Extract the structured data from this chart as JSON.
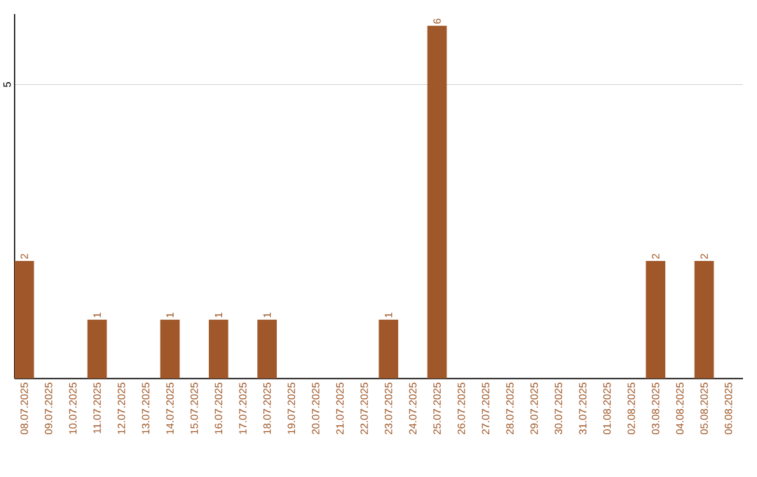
{
  "chart_data": {
    "type": "bar",
    "categories": [
      "08.07.2025",
      "09.07.2025",
      "10.07.2025",
      "11.07.2025",
      "12.07.2025",
      "13.07.2025",
      "14.07.2025",
      "15.07.2025",
      "16.07.2025",
      "17.07.2025",
      "18.07.2025",
      "19.07.2025",
      "20.07.2025",
      "21.07.2025",
      "22.07.2025",
      "23.07.2025",
      "24.07.2025",
      "25.07.2025",
      "26.07.2025",
      "27.07.2025",
      "28.07.2025",
      "29.07.2025",
      "30.07.2025",
      "31.07.2025",
      "01.08.2025",
      "02.08.2025",
      "03.08.2025",
      "04.08.2025",
      "05.08.2025",
      "06.08.2025"
    ],
    "values": [
      2,
      0,
      0,
      1,
      0,
      0,
      1,
      0,
      1,
      0,
      1,
      0,
      0,
      0,
      0,
      1,
      0,
      6,
      0,
      0,
      0,
      0,
      0,
      0,
      0,
      0,
      2,
      0,
      2,
      0
    ],
    "value_labels": [
      "2",
      null,
      null,
      "1",
      null,
      null,
      "1",
      null,
      "1",
      null,
      "1",
      null,
      null,
      null,
      null,
      "1",
      null,
      "6",
      null,
      null,
      null,
      null,
      null,
      null,
      null,
      null,
      "2",
      null,
      "2",
      null
    ],
    "color": "#a0582a",
    "ylim": [
      0,
      6.2
    ],
    "yticks": [
      5
    ],
    "grid": "y"
  }
}
